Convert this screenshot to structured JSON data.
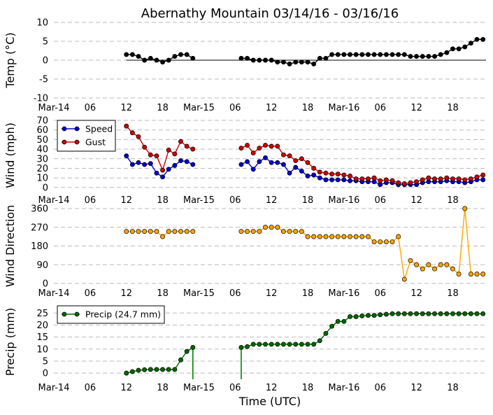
{
  "title": "Abernathy Mountain 03/14/16 - 03/16/16",
  "xlabel": "Time (UTC)",
  "x_ticks": [
    {
      "hour": 0,
      "label": "Mar-14"
    },
    {
      "hour": 6,
      "label": "06"
    },
    {
      "hour": 12,
      "label": "12"
    },
    {
      "hour": 18,
      "label": "18"
    },
    {
      "hour": 24,
      "label": "Mar-15"
    },
    {
      "hour": 30,
      "label": "06"
    },
    {
      "hour": 36,
      "label": "12"
    },
    {
      "hour": 42,
      "label": "18"
    },
    {
      "hour": 48,
      "label": "Mar-16"
    },
    {
      "hour": 54,
      "label": "06"
    },
    {
      "hour": 60,
      "label": "12"
    },
    {
      "hour": 66,
      "label": "18"
    }
  ],
  "x_range_hours": [
    0,
    71.5
  ],
  "chart_data": [
    {
      "type": "line",
      "id": "temp",
      "ylabel": "Temp (°C)",
      "ylim": [
        -10,
        10
      ],
      "yticks": [
        -10,
        -5,
        0,
        5,
        10
      ],
      "grid": "dashed-horizontal",
      "zero_line": true,
      "series": [
        {
          "name": "Temp",
          "color": "#000000",
          "segments": [
            {
              "x": [
                12,
                13,
                14,
                15,
                16,
                17,
                18,
                19,
                20,
                21,
                22,
                23
              ],
              "y": [
                1.5,
                1.5,
                1.0,
                0.0,
                0.5,
                0.0,
                -0.5,
                0.0,
                1.0,
                1.5,
                1.5,
                0.5
              ]
            },
            {
              "x": [
                31,
                32,
                33,
                34,
                35,
                36,
                37,
                38,
                39,
                40,
                41,
                42,
                43,
                44,
                45,
                46,
                47,
                48,
                49,
                50,
                51,
                52,
                53,
                54,
                55,
                56,
                57,
                58,
                59,
                60,
                61,
                62,
                63,
                64,
                65,
                66,
                67,
                68,
                69,
                70,
                71
              ],
              "y": [
                0.5,
                0.5,
                0.0,
                0.0,
                0.0,
                0.0,
                -0.5,
                -0.5,
                -1.0,
                -0.5,
                -0.5,
                -0.5,
                -1.0,
                0.5,
                0.5,
                1.5,
                1.5,
                1.5,
                1.5,
                1.5,
                1.5,
                1.5,
                1.5,
                1.5,
                1.5,
                1.5,
                1.5,
                1.5,
                1.0,
                1.0,
                1.0,
                1.0,
                1.0,
                1.5,
                2.0,
                3.0,
                3.0,
                3.5,
                4.5,
                5.5,
                5.5
              ]
            }
          ]
        }
      ]
    },
    {
      "type": "line",
      "id": "wind",
      "ylabel": "Wind (mph)",
      "ylim": [
        -3,
        70
      ],
      "yticks": [
        0,
        10,
        20,
        30,
        40,
        50,
        60,
        70
      ],
      "grid": "dashed-horizontal",
      "legend": "top-left",
      "series": [
        {
          "name": "Speed",
          "color": "#0000cc",
          "segments": [
            {
              "x": [
                12,
                13,
                14,
                15,
                16,
                17,
                18,
                19,
                20,
                21,
                22,
                23
              ],
              "y": [
                33,
                24,
                26,
                24,
                25,
                15,
                11,
                19,
                23,
                28,
                27,
                24
              ]
            },
            {
              "x": [
                31,
                32,
                33,
                34,
                35,
                36,
                37,
                38,
                39,
                40,
                41,
                42,
                43,
                44,
                45,
                46,
                47,
                48,
                49,
                50,
                51,
                52,
                53,
                54,
                55,
                56,
                57,
                58,
                59,
                60,
                61,
                62,
                63,
                64,
                65,
                66,
                67,
                68,
                69,
                70,
                71
              ],
              "y": [
                24,
                27,
                19,
                27,
                31,
                26,
                26,
                24,
                15,
                21,
                17,
                12,
                13,
                10,
                8,
                8,
                8,
                8,
                7,
                7,
                6,
                6,
                6,
                3,
                5,
                5,
                3,
                3,
                3,
                3,
                5,
                6,
                6,
                6,
                7,
                6,
                6,
                5,
                6,
                8,
                8
              ]
            }
          ]
        },
        {
          "name": "Gust",
          "color": "#cc0000",
          "segments": [
            {
              "x": [
                12,
                13,
                14,
                15,
                16,
                17,
                18,
                19,
                20,
                21,
                22,
                23
              ],
              "y": [
                64,
                57,
                53,
                42,
                34,
                33,
                18,
                39,
                35,
                48,
                43,
                40
              ]
            },
            {
              "x": [
                31,
                32,
                33,
                34,
                35,
                36,
                37,
                38,
                39,
                40,
                41,
                42,
                43,
                44,
                45,
                46,
                47,
                48,
                49,
                50,
                51,
                52,
                53,
                54,
                55,
                56,
                57,
                58,
                59,
                60,
                61,
                62,
                63,
                64,
                65,
                66,
                67,
                68,
                69,
                70,
                71
              ],
              "y": [
                41,
                44,
                36,
                41,
                44,
                43,
                43,
                34,
                33,
                28,
                30,
                26,
                20,
                16,
                15,
                14,
                14,
                13,
                12,
                9,
                9,
                9,
                10,
                7,
                8,
                7,
                5,
                4,
                5,
                6,
                8,
                10,
                9,
                9,
                10,
                9,
                9,
                8,
                9,
                11,
                13
              ]
            }
          ]
        }
      ]
    },
    {
      "type": "line",
      "id": "direction",
      "ylabel": "Wind Direction",
      "ylim": [
        0,
        360
      ],
      "yticks": [
        0,
        90,
        180,
        270,
        360
      ],
      "grid": "dashed-horizontal",
      "series": [
        {
          "name": "Direction",
          "color": "#ffa500",
          "segments": [
            {
              "x": [
                12,
                13,
                14,
                15,
                16,
                17,
                18,
                19,
                20,
                21,
                22,
                23
              ],
              "y": [
                250,
                250,
                250,
                250,
                250,
                250,
                225,
                250,
                250,
                250,
                250,
                250
              ]
            },
            {
              "x": [
                31,
                32,
                33,
                34,
                35,
                36,
                37,
                38,
                39,
                40,
                41,
                42,
                43,
                44,
                45,
                46,
                47,
                48,
                49,
                50,
                51,
                52,
                53,
                54,
                55,
                56,
                57,
                58,
                59,
                60,
                61,
                62,
                63,
                64,
                65,
                66,
                67,
                68,
                69,
                70,
                71
              ],
              "y": [
                250,
                250,
                250,
                250,
                270,
                270,
                270,
                250,
                250,
                250,
                250,
                225,
                225,
                225,
                225,
                225,
                225,
                225,
                225,
                225,
                225,
                225,
                200,
                200,
                200,
                200,
                225,
                20,
                110,
                90,
                70,
                90,
                70,
                90,
                90,
                70,
                45,
                360,
                45,
                45,
                45
              ]
            }
          ]
        }
      ]
    },
    {
      "type": "line",
      "id": "precip",
      "ylabel": "Precip (mm)",
      "ylim": [
        -2,
        28
      ],
      "yticks": [
        0,
        5,
        10,
        15,
        20,
        25
      ],
      "grid": "dashed-horizontal",
      "legend": "top-left",
      "series": [
        {
          "name": "Precip (24.7 mm)",
          "color": "#006600",
          "drop_line_color": "#008000",
          "segments": [
            {
              "x": [
                12,
                13,
                14,
                15,
                16,
                17,
                18,
                19,
                20,
                21,
                22,
                23
              ],
              "y": [
                0.0,
                0.6,
                1.2,
                1.4,
                1.5,
                1.5,
                1.5,
                1.5,
                1.5,
                5.5,
                9.0,
                10.7
              ],
              "drop_after": true
            },
            {
              "x": [
                31,
                32,
                33,
                34,
                35,
                36,
                37,
                38,
                39,
                40,
                41,
                42,
                43,
                44,
                45,
                46,
                47,
                48,
                49,
                50,
                51,
                52,
                53,
                54,
                55,
                56,
                57,
                58,
                59,
                60,
                61,
                62,
                63,
                64,
                65,
                66,
                67,
                68,
                69,
                70,
                71
              ],
              "y": [
                10.7,
                11.0,
                12.0,
                12.0,
                12.0,
                12.0,
                12.0,
                12.0,
                12.0,
                12.0,
                12.0,
                12.0,
                12.0,
                13.5,
                16.5,
                19.5,
                21.5,
                21.5,
                23.5,
                23.5,
                23.8,
                24.0,
                24.0,
                24.3,
                24.5,
                24.7,
                24.7,
                24.7,
                24.7,
                24.7,
                24.7,
                24.7,
                24.7,
                24.7,
                24.7,
                24.7,
                24.7,
                24.7,
                24.7,
                24.7,
                24.7
              ],
              "rise_before": true
            }
          ]
        }
      ]
    }
  ]
}
